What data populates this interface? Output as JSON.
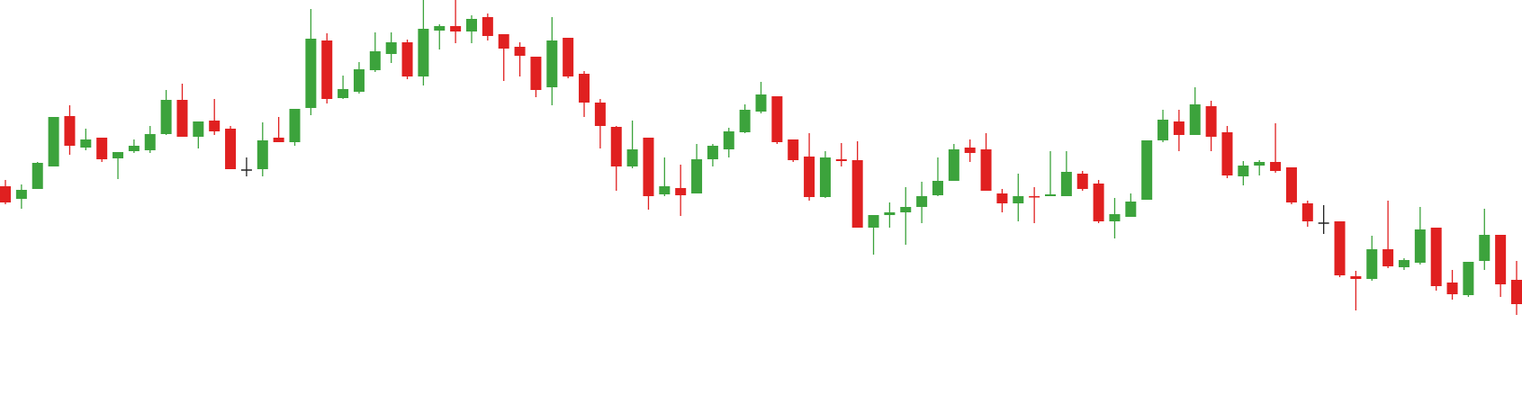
{
  "chart_data": {
    "type": "candlestick",
    "ylim": [
      0,
      459
    ],
    "up_color": "#3ca33c",
    "down_color": "#e02020",
    "flat_color": "#222222",
    "open": [
      252,
      238,
      249,
      274,
      330,
      295,
      306,
      283,
      291,
      292,
      310,
      348,
      307,
      325,
      316,
      270,
      271,
      306,
      301,
      339,
      414,
      350,
      357,
      381,
      399,
      412,
      374,
      425,
      430,
      424,
      440,
      421,
      407,
      396,
      362,
      417,
      377,
      345,
      318,
      274,
      306,
      243,
      250,
      244,
      282,
      293,
      312,
      335,
      352,
      304,
      285,
      240,
      282,
      281,
      206,
      220,
      223,
      229,
      242,
      258,
      295,
      293,
      244,
      233,
      241,
      241,
      241,
      266,
      255,
      213,
      218,
      237,
      303,
      324,
      309,
      341,
      312,
      263,
      275,
      279,
      273,
      233,
      211,
      213,
      152,
      149,
      182,
      162,
      167,
      206,
      145,
      131,
      169,
      198,
      148
    ],
    "high": [
      259,
      254,
      279,
      329,
      342,
      316,
      306,
      290,
      304,
      319,
      359,
      366,
      324,
      349,
      319,
      284,
      323,
      329,
      338,
      449,
      422,
      375,
      390,
      423,
      423,
      415,
      459,
      432,
      459,
      442,
      444,
      421,
      412,
      396,
      440,
      417,
      380,
      349,
      319,
      325,
      306,
      284,
      276,
      299,
      299,
      317,
      343,
      368,
      352,
      304,
      311,
      291,
      300,
      302,
      220,
      234,
      251,
      257,
      284,
      299,
      304,
      311,
      249,
      266,
      251,
      291,
      291,
      269,
      259,
      239,
      244,
      303,
      337,
      337,
      362,
      347,
      319,
      280,
      281,
      322,
      273,
      236,
      231,
      213,
      158,
      197,
      236,
      172,
      229,
      206,
      159,
      168,
      227,
      198,
      169
    ],
    "low": [
      232,
      227,
      249,
      274,
      287,
      292,
      279,
      260,
      289,
      289,
      309,
      307,
      294,
      309,
      271,
      263,
      263,
      301,
      297,
      331,
      344,
      349,
      355,
      379,
      389,
      371,
      364,
      404,
      411,
      411,
      414,
      369,
      374,
      351,
      342,
      372,
      329,
      294,
      247,
      272,
      226,
      241,
      219,
      244,
      274,
      284,
      311,
      333,
      299,
      279,
      236,
      239,
      274,
      206,
      176,
      206,
      187,
      211,
      241,
      258,
      279,
      247,
      223,
      213,
      211,
      241,
      241,
      247,
      211,
      194,
      218,
      237,
      301,
      291,
      309,
      291,
      261,
      253,
      264,
      267,
      232,
      207,
      199,
      151,
      114,
      147,
      161,
      159,
      165,
      136,
      126,
      129,
      159,
      129,
      109
    ],
    "close": [
      234,
      248,
      278,
      329,
      297,
      304,
      282,
      290,
      297,
      310,
      348,
      307,
      324,
      313,
      271,
      270,
      303,
      301,
      338,
      416,
      349,
      360,
      382,
      402,
      412,
      374,
      427,
      430,
      424,
      438,
      419,
      405,
      397,
      359,
      414,
      374,
      345,
      319,
      274,
      293,
      241,
      252,
      242,
      282,
      297,
      313,
      337,
      354,
      301,
      281,
      240,
      284,
      280,
      206,
      220,
      223,
      229,
      241,
      258,
      293,
      289,
      247,
      233,
      241,
      240,
      243,
      268,
      249,
      213,
      221,
      235,
      303,
      326,
      309,
      343,
      307,
      264,
      275,
      279,
      269,
      234,
      213,
      211,
      153,
      149,
      182,
      163,
      170,
      204,
      141,
      132,
      168,
      198,
      143,
      121
    ]
  }
}
